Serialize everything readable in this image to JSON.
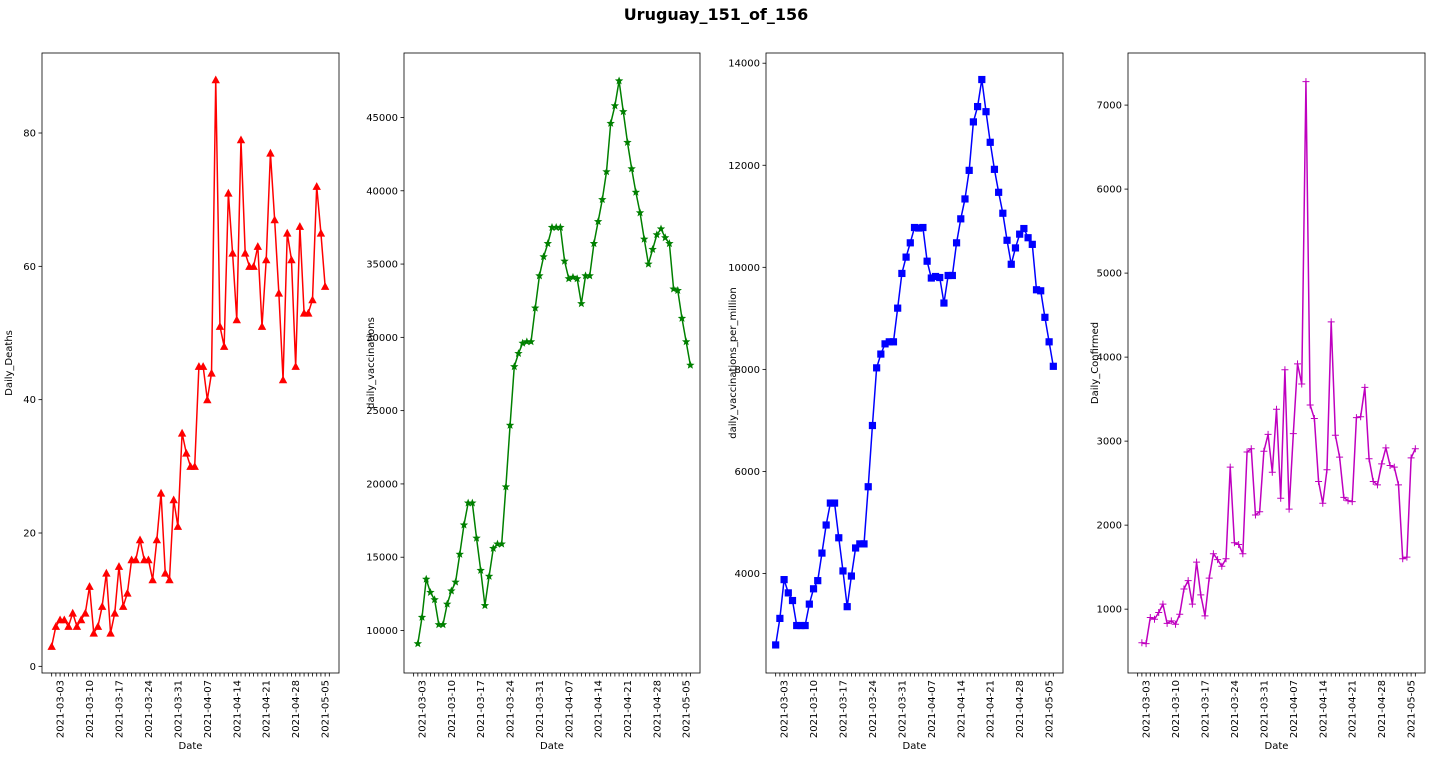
{
  "figure": {
    "title": "Uruguay_151_of_156"
  },
  "x_dates": [
    "2021-03-01",
    "2021-03-02",
    "2021-03-03",
    "2021-03-04",
    "2021-03-05",
    "2021-03-06",
    "2021-03-07",
    "2021-03-08",
    "2021-03-09",
    "2021-03-10",
    "2021-03-11",
    "2021-03-12",
    "2021-03-13",
    "2021-03-14",
    "2021-03-15",
    "2021-03-16",
    "2021-03-17",
    "2021-03-18",
    "2021-03-19",
    "2021-03-20",
    "2021-03-21",
    "2021-03-22",
    "2021-03-23",
    "2021-03-24",
    "2021-03-25",
    "2021-03-26",
    "2021-03-27",
    "2021-03-28",
    "2021-03-29",
    "2021-03-30",
    "2021-03-31",
    "2021-04-01",
    "2021-04-02",
    "2021-04-03",
    "2021-04-04",
    "2021-04-05",
    "2021-04-06",
    "2021-04-07",
    "2021-04-08",
    "2021-04-09",
    "2021-04-10",
    "2021-04-11",
    "2021-04-12",
    "2021-04-13",
    "2021-04-14",
    "2021-04-15",
    "2021-04-16",
    "2021-04-17",
    "2021-04-18",
    "2021-04-19",
    "2021-04-20",
    "2021-04-21",
    "2021-04-22",
    "2021-04-23",
    "2021-04-24",
    "2021-04-25",
    "2021-04-26",
    "2021-04-27",
    "2021-04-28",
    "2021-04-29",
    "2021-04-30",
    "2021-05-01",
    "2021-05-02",
    "2021-05-03",
    "2021-05-04",
    "2021-05-05",
    "2021-05-06"
  ],
  "chart_data": [
    {
      "type": "line",
      "xlabel": "Date",
      "ylabel": "Daily_Deaths",
      "color": "#ff0000",
      "marker": "triangle",
      "ylim": [
        -1,
        92
      ],
      "yticks": [
        0,
        20,
        40,
        60,
        80
      ],
      "xticks": [
        "2021-03-03",
        "2021-03-10",
        "2021-03-17",
        "2021-03-24",
        "2021-03-31",
        "2021-04-07",
        "2021-04-14",
        "2021-04-21",
        "2021-04-28",
        "2021-05-05"
      ],
      "values": [
        3,
        6,
        7,
        7,
        6,
        8,
        6,
        7,
        8,
        12,
        5,
        6,
        9,
        14,
        5,
        8,
        15,
        9,
        11,
        16,
        16,
        19,
        16,
        16,
        13,
        19,
        26,
        14,
        13,
        25,
        21,
        35,
        32,
        30,
        30,
        45,
        45,
        40,
        44,
        88,
        51,
        48,
        71,
        62,
        52,
        79,
        62,
        60,
        60,
        63,
        51,
        61,
        77,
        67,
        56,
        43,
        65,
        61,
        45,
        66,
        53,
        53,
        55,
        72,
        65,
        57,
        null
      ]
    },
    {
      "type": "line",
      "xlabel": "Date",
      "ylabel": "daily_vaccinations",
      "color": "#008000",
      "marker": "star",
      "ylim": [
        7100,
        49400
      ],
      "yticks": [
        10000,
        15000,
        20000,
        25000,
        30000,
        35000,
        40000,
        45000
      ],
      "xticks": [
        "2021-03-03",
        "2021-03-10",
        "2021-03-17",
        "2021-03-24",
        "2021-03-31",
        "2021-04-07",
        "2021-04-14",
        "2021-04-21",
        "2021-04-28",
        "2021-05-05"
      ],
      "values": [
        null,
        9100,
        10900,
        13500,
        12600,
        12100,
        10400,
        10400,
        11800,
        12700,
        13300,
        15200,
        17200,
        18700,
        18700,
        16300,
        14100,
        11700,
        13700,
        15600,
        15900,
        15900,
        19800,
        24000,
        28000,
        28900,
        29600,
        29700,
        29700,
        32000,
        34200,
        35500,
        36400,
        37500,
        37500,
        37500,
        35200,
        34000,
        34100,
        34000,
        32300,
        34200,
        34200,
        36400,
        37900,
        39400,
        41300,
        44600,
        45800,
        47500,
        45400,
        43300,
        41500,
        39900,
        38500,
        36700,
        35000,
        36000,
        37000,
        37400,
        36800,
        36400,
        33300,
        33200,
        31300,
        29700,
        28100
      ]
    },
    {
      "type": "line",
      "xlabel": "Date",
      "ylabel": "daily_vaccinations_per_million",
      "color": "#0000ff",
      "marker": "square",
      "ylim": [
        2050,
        14200
      ],
      "yticks": [
        4000,
        6000,
        8000,
        10000,
        12000,
        14000
      ],
      "xticks": [
        "2021-03-03",
        "2021-03-10",
        "2021-03-17",
        "2021-03-24",
        "2021-03-31",
        "2021-04-07",
        "2021-04-14",
        "2021-04-21",
        "2021-04-28",
        "2021-05-05"
      ],
      "values": [
        2600,
        3120,
        3880,
        3620,
        3470,
        2980,
        2980,
        2980,
        3400,
        3700,
        3860,
        4400,
        4950,
        5380,
        5380,
        4700,
        4050,
        3350,
        3950,
        4500,
        4580,
        4580,
        5700,
        6900,
        8030,
        8300,
        8500,
        8540,
        8540,
        9200,
        9880,
        10200,
        10480,
        10780,
        10770,
        10780,
        10120,
        9790,
        9820,
        9800,
        9300,
        9840,
        9840,
        10480,
        10950,
        11340,
        11900,
        12850,
        13150,
        13680,
        13050,
        12450,
        11920,
        11470,
        11060,
        10530,
        10060,
        10380,
        10650,
        10760,
        10580,
        10450,
        9560,
        9540,
        9020,
        8540,
        8060
      ]
    },
    {
      "type": "line",
      "xlabel": "Date",
      "ylabel": "Daily_Confirmed",
      "color": "#bf00bf",
      "marker": "plus",
      "ylim": [
        240,
        7620
      ],
      "yticks": [
        1000,
        2000,
        3000,
        4000,
        5000,
        6000,
        7000
      ],
      "xticks": [
        "2021-03-03",
        "2021-03-10",
        "2021-03-17",
        "2021-03-24",
        "2021-03-31",
        "2021-04-07",
        "2021-04-14",
        "2021-04-21",
        "2021-04-28",
        "2021-05-05"
      ],
      "values": [
        null,
        600,
        590,
        900,
        880,
        960,
        1060,
        830,
        860,
        820,
        940,
        1240,
        1340,
        1060,
        1560,
        1170,
        920,
        1370,
        1660,
        1590,
        1510,
        1600,
        2690,
        1790,
        1770,
        1660,
        2870,
        2910,
        2120,
        2160,
        2880,
        3080,
        2630,
        3380,
        2320,
        3850,
        2190,
        3090,
        3920,
        3680,
        7280,
        3430,
        3270,
        2520,
        2260,
        2660,
        4420,
        3070,
        2810,
        2330,
        2290,
        2280,
        3280,
        3290,
        3640,
        2790,
        2520,
        2480,
        2730,
        2920,
        2710,
        2690,
        2480,
        1600,
        1620,
        2800,
        2910
      ]
    }
  ]
}
